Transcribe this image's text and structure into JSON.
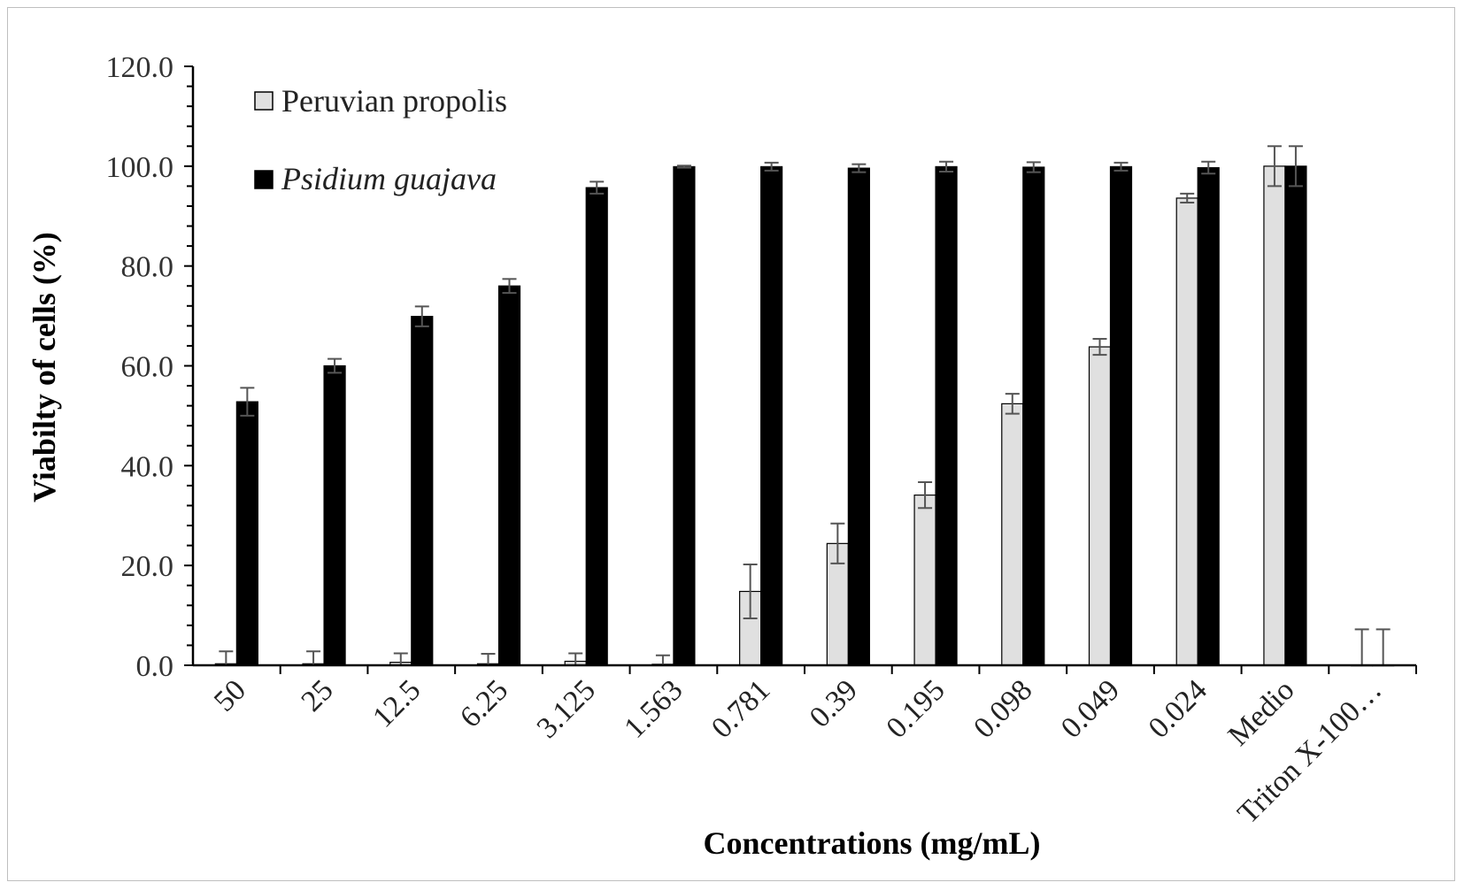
{
  "chart_data": {
    "type": "bar",
    "title": "",
    "xlabel": "Concentrations (mg/mL)",
    "ylabel": "Viabilty of cells (%)",
    "ylim": [
      0,
      120
    ],
    "yticks": [
      "0.0",
      "20.0",
      "40.0",
      "60.0",
      "80.0",
      "100.0",
      "120.0"
    ],
    "categories": [
      "50",
      "25",
      "12.5",
      "6.25",
      "3.125",
      "1.563",
      "0.781",
      "0.39",
      "0.195",
      "0.098",
      "0.049",
      "0.024",
      "Medio",
      "Triton X-100…"
    ],
    "series": [
      {
        "name": "Peruvian propolis",
        "color": "#e0e0e0",
        "italic": false,
        "values": [
          0.3,
          0.3,
          0.6,
          0.3,
          0.8,
          0.2,
          14.8,
          24.4,
          34.1,
          52.4,
          63.8,
          93.6,
          100.0,
          0.0
        ],
        "errors": [
          2.5,
          2.5,
          1.8,
          2.0,
          1.6,
          1.8,
          5.4,
          4.0,
          2.6,
          2.0,
          1.6,
          0.9,
          4.0,
          7.2
        ]
      },
      {
        "name": "Psidium guajava",
        "color": "#000000",
        "italic": true,
        "values": [
          52.8,
          60.0,
          69.9,
          76.0,
          95.7,
          99.9,
          99.9,
          99.6,
          99.9,
          99.8,
          99.9,
          99.7,
          100.0,
          0.0
        ],
        "errors": [
          2.8,
          1.4,
          2.0,
          1.4,
          1.2,
          0.2,
          0.8,
          0.8,
          1.0,
          1.0,
          0.8,
          1.2,
          4.0,
          7.2
        ]
      }
    ],
    "grid": false,
    "legend": "top-left"
  }
}
